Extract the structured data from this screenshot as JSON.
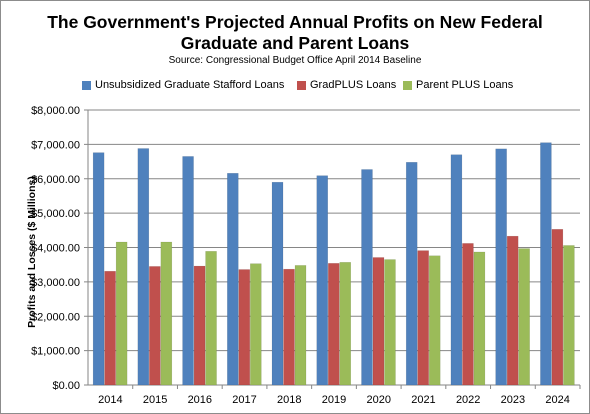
{
  "chart_data": {
    "type": "bar",
    "title": "The Government's Projected Annual Profits on New Federal Graduate and Parent Loans",
    "title_lines": [
      "The Government's Projected Annual Profits on New Federal",
      "Graduate and Parent Loans"
    ],
    "subtitle": "Source: Congressional Budget Office April 2014 Baseline",
    "xlabel": "",
    "ylabel": "Profits and Losses ($ Millions)",
    "ylim": [
      0,
      8000
    ],
    "yticks": [
      "$0.00",
      "$1,000.00",
      "$2,000.00",
      "$3,000.00",
      "$4,000.00",
      "$5,000.00",
      "$6,000.00",
      "$7,000.00",
      "$8,000.00"
    ],
    "grid": true,
    "legend_position": "top",
    "categories": [
      "2014",
      "2015",
      "2016",
      "2017",
      "2018",
      "2019",
      "2020",
      "2021",
      "2022",
      "2023",
      "2024"
    ],
    "series": [
      {
        "name": "Unsubsidized Graduate Stafford Loans",
        "color": "#4f81bd",
        "values": [
          6760,
          6880,
          6650,
          6160,
          5900,
          6090,
          6270,
          6480,
          6700,
          6870,
          7050
        ]
      },
      {
        "name": "GradPLUS Loans",
        "color": "#c0504d",
        "values": [
          3310,
          3450,
          3460,
          3360,
          3370,
          3540,
          3710,
          3910,
          4120,
          4330,
          4530
        ]
      },
      {
        "name": "Parent PLUS  Loans",
        "color": "#9bbb59",
        "values": [
          4160,
          4160,
          3890,
          3530,
          3480,
          3570,
          3650,
          3760,
          3870,
          3970,
          4060
        ]
      }
    ]
  }
}
